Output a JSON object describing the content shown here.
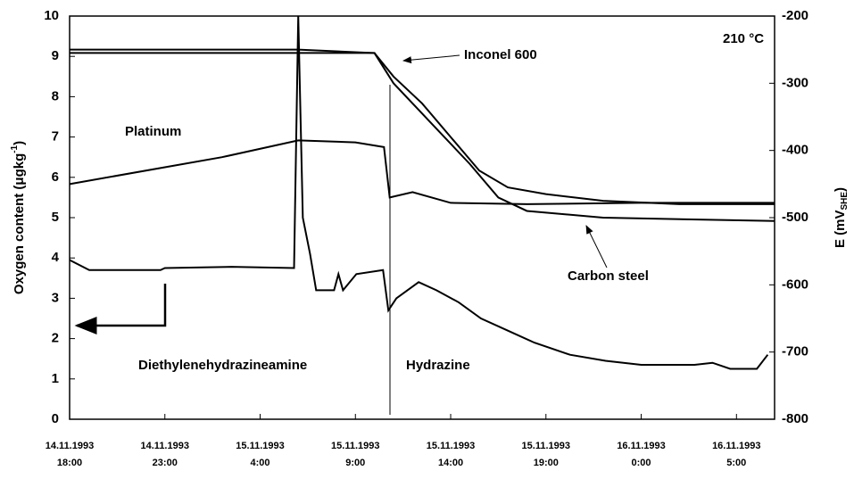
{
  "chart_data": {
    "type": "line",
    "y_label": [
      "Oxygen content (μgkg",
      "-1",
      ")"
    ],
    "y2_label": [
      "E (mV",
      "SHE",
      ")"
    ],
    "annotations": [
      "210 °C",
      "Diethylenehydrazineamine",
      "Hydrazine"
    ],
    "xlim": [
      0,
      37
    ],
    "xticks": [
      {
        "value": 0,
        "label": "14.11.1993 18:00"
      },
      {
        "value": 5,
        "label": "14.11.1993 23:00"
      },
      {
        "value": 10,
        "label": "15.11.1993 4:00"
      },
      {
        "value": 15,
        "label": "15.11.1993 9:00"
      },
      {
        "value": 20,
        "label": "15.11.1993 14:00"
      },
      {
        "value": 25,
        "label": "15.11.1993 19:00"
      },
      {
        "value": 30,
        "label": "16.11.1993 0:00"
      },
      {
        "value": 35,
        "label": "16.11.1993 5:00"
      }
    ],
    "ylim": [
      0,
      10
    ],
    "yticks": [
      0,
      1,
      2,
      3,
      4,
      5,
      6,
      7,
      8,
      9,
      10
    ],
    "y2lim": [
      -800,
      -200
    ],
    "y2ticks": [
      -800,
      -700,
      -600,
      -500,
      -400,
      -300,
      -200
    ],
    "series": [
      {
        "name": "Oxygen",
        "color": "#000000",
        "x": [
          0,
          1.03,
          4.77,
          5.0,
          8.5,
          11.78,
          12.0,
          12.24,
          12.62,
          12.94,
          13.88,
          14.11,
          14.35,
          15.05,
          16.45,
          16.73,
          17.15,
          18.32,
          19.25,
          20.42,
          21.59,
          22.99,
          24.39,
          26.26,
          28.13,
          30.0,
          32.8,
          33.74,
          34.67,
          36.07,
          36.64
        ],
        "values": [
          3.95,
          3.7,
          3.7,
          3.75,
          3.78,
          3.75,
          10,
          5,
          4.1,
          3.2,
          3.2,
          3.6,
          3.2,
          3.6,
          3.7,
          2.7,
          3.0,
          3.4,
          3.2,
          2.9,
          2.5,
          2.2,
          1.9,
          1.6,
          1.45,
          1.35,
          1.35,
          1.4,
          1.25,
          1.25,
          1.6
        ]
      },
      {
        "name": "Inconel 600",
        "color": "#000000",
        "axis": "y2",
        "x": [
          0,
          12,
          16,
          17,
          18.5,
          20,
          21.5,
          23,
          25,
          28,
          32,
          37
        ],
        "values": [
          -250,
          -250,
          -255,
          -290,
          -330,
          -380,
          -430,
          -455,
          -465,
          -475,
          -480,
          -480
        ]
      },
      {
        "name": "Carbon steel",
        "color": "#000000",
        "axis": "y2",
        "x": [
          0,
          12,
          16,
          17,
          19,
          21,
          22.5,
          24,
          28,
          37
        ],
        "values": [
          -255,
          -255,
          -255,
          -300,
          -360,
          -420,
          -470,
          -490,
          -500,
          -505
        ]
      },
      {
        "name": "Platinum",
        "color": "#000000",
        "axis": "y2",
        "x": [
          0,
          5,
          8,
          12,
          15,
          16.5,
          16.8,
          18,
          20,
          24,
          30,
          37
        ],
        "values": [
          -450,
          -425,
          -410,
          -385,
          -388,
          -395,
          -470,
          -462,
          -478,
          -480,
          -478,
          -478
        ]
      }
    ]
  }
}
